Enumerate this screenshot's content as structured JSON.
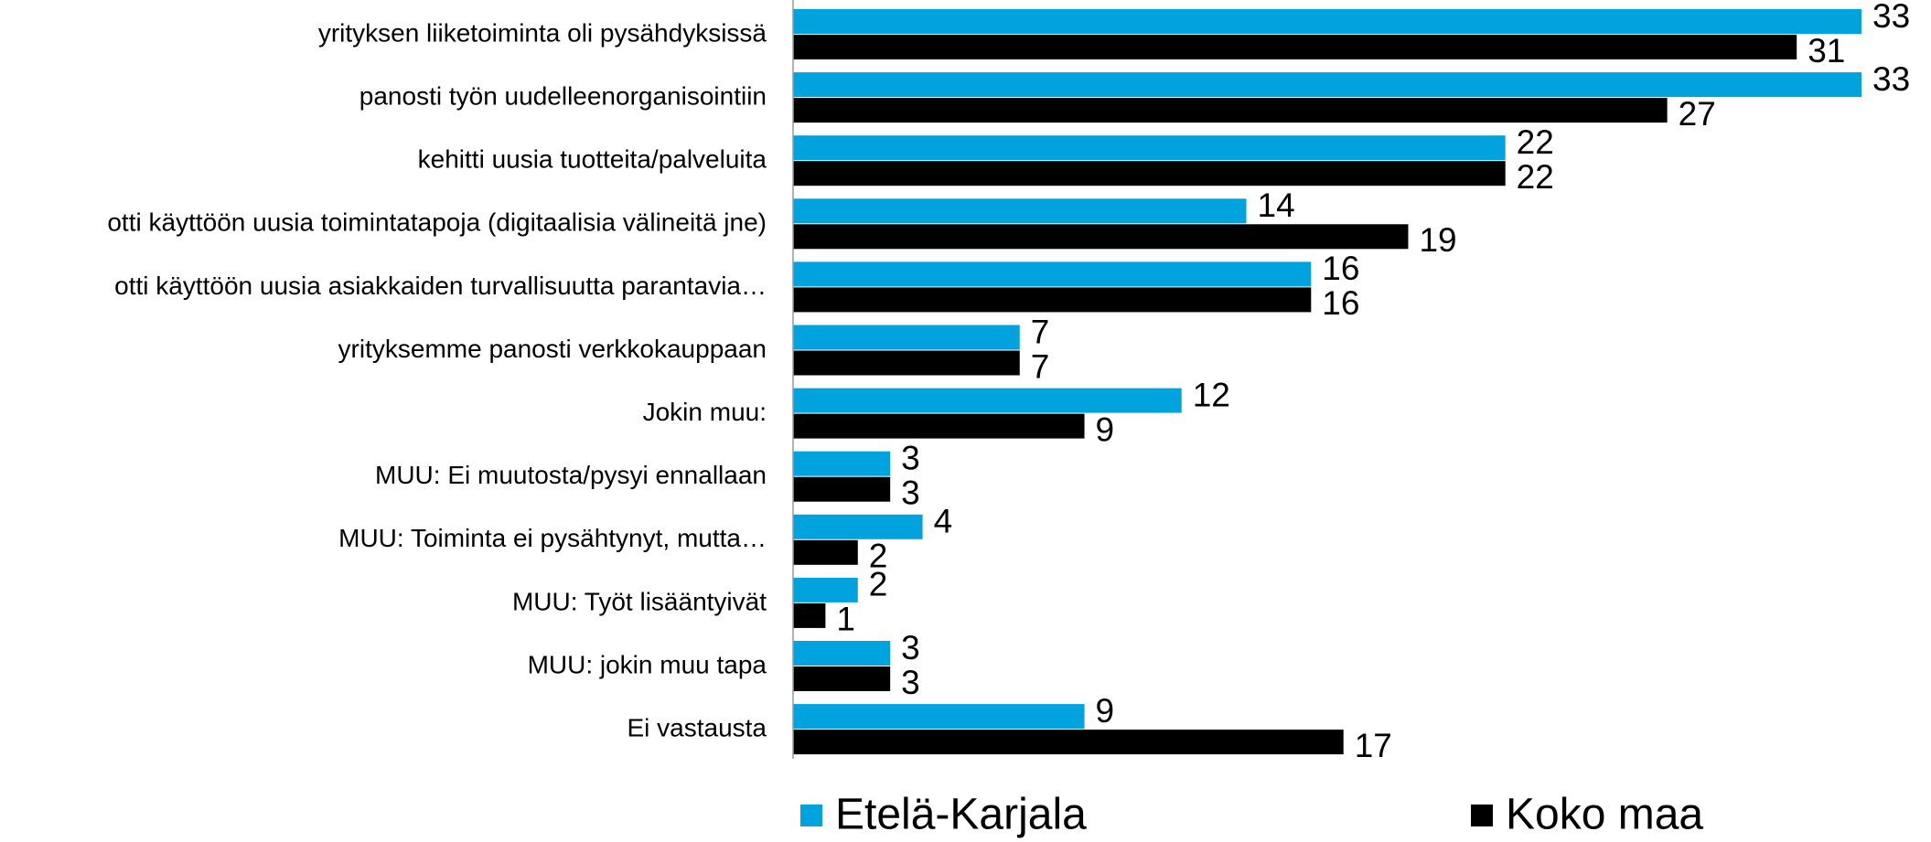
{
  "chart_data": {
    "type": "bar",
    "orientation": "horizontal",
    "categories": [
      "yrityksen liiketoiminta oli pysähdyksissä",
      "panosti työn uudelleenorganisointiin",
      "kehitti uusia tuotteita/palveluita",
      "otti käyttöön uusia toimintatapoja (digitaalisia välineitä jne)",
      "otti käyttöön uusia asiakkaiden turvallisuutta parantavia…",
      "yrityksemme panosti verkkokauppaan",
      "Jokin muu:",
      "MUU: Ei muutosta/pysyi ennallaan",
      "MUU: Toiminta ei pysähtynyt, mutta…",
      "MUU: Työt lisääntyivät",
      "MUU: jokin muu tapa",
      "Ei vastausta"
    ],
    "series": [
      {
        "name": "Etelä-Karjala",
        "color": "#00a3dd",
        "values": [
          33,
          33,
          22,
          14,
          16,
          7,
          12,
          3,
          4,
          2,
          3,
          9
        ]
      },
      {
        "name": "Koko maa",
        "color": "#000000",
        "values": [
          31,
          27,
          22,
          19,
          16,
          7,
          9,
          3,
          2,
          1,
          3,
          17
        ]
      }
    ],
    "xlim": [
      0,
      33
    ]
  }
}
